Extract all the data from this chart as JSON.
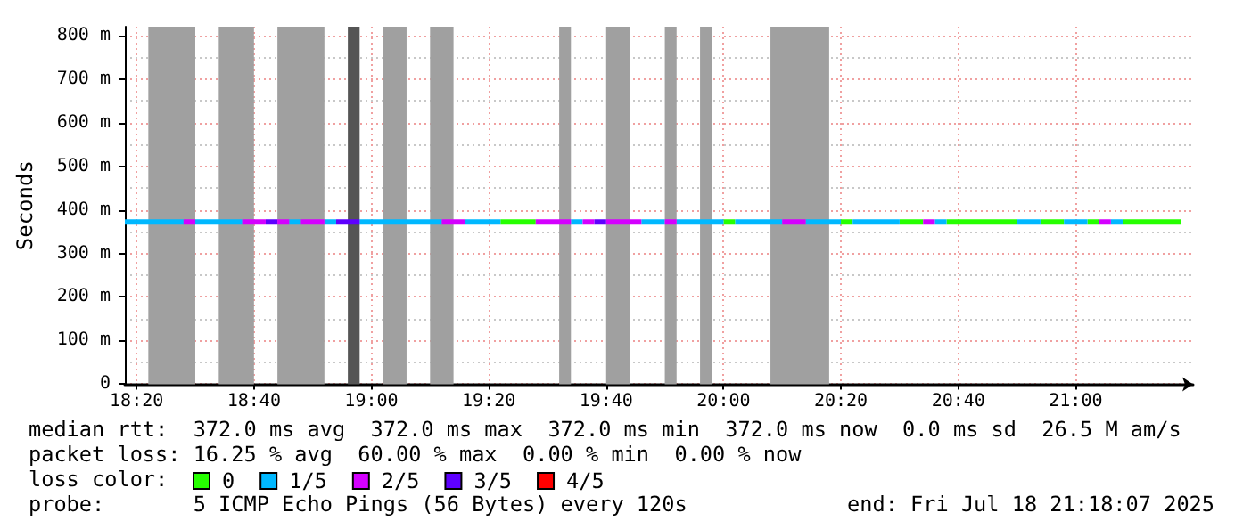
{
  "chart_data": {
    "type": "line",
    "ylabel": "Seconds",
    "legend_title": "loss color:",
    "legend": "bottom left",
    "grid": true,
    "xlim": [
      18.3,
      21.3333
    ],
    "xticks": [
      {
        "value": 18.3333,
        "label": "18:20"
      },
      {
        "value": 18.6667,
        "label": "18:40"
      },
      {
        "value": 19,
        "label": "19:00"
      },
      {
        "value": 19.3333,
        "label": "19:20"
      },
      {
        "value": 19.6667,
        "label": "19:40"
      },
      {
        "value": 20,
        "label": "20:00"
      },
      {
        "value": 20.3333,
        "label": "20:20"
      },
      {
        "value": 20.6667,
        "label": "20:40"
      },
      {
        "value": 21,
        "label": "21:00"
      }
    ],
    "ylim": [
      0,
      820
    ],
    "yticks": [
      0,
      {
        "value": 100,
        "label": "100 m"
      },
      {
        "value": 200,
        "label": "200 m"
      },
      {
        "value": 300,
        "label": "300 m"
      },
      {
        "value": 400,
        "label": "400 m"
      },
      {
        "value": 500,
        "label": "500 m"
      },
      {
        "value": 600,
        "label": "600 m"
      },
      {
        "value": 700,
        "label": "700 m"
      },
      {
        "value": 800,
        "label": "800 m"
      }
    ],
    "bands": [
      {
        "axis": "x",
        "from": 18.3667,
        "to": 18.5,
        "color": "#a0a0a0"
      },
      {
        "axis": "x",
        "from": 18.5667,
        "to": 18.6667,
        "color": "#a0a0a0"
      },
      {
        "axis": "x",
        "from": 18.7333,
        "to": 18.8667,
        "color": "#a0a0a0"
      },
      {
        "axis": "x",
        "from": 18.9333,
        "to": 18.9667,
        "color": "#555555"
      },
      {
        "axis": "x",
        "from": 19.0333,
        "to": 19.1,
        "color": "#a0a0a0"
      },
      {
        "axis": "x",
        "from": 19.1667,
        "to": 19.2333,
        "color": "#a0a0a0"
      },
      {
        "axis": "x",
        "from": 19.5333,
        "to": 19.5667,
        "color": "#a0a0a0"
      },
      {
        "axis": "x",
        "from": 19.6667,
        "to": 19.7333,
        "color": "#a0a0a0"
      },
      {
        "axis": "x",
        "from": 19.8333,
        "to": 19.8667,
        "color": "#a0a0a0"
      },
      {
        "axis": "x",
        "from": 19.9333,
        "to": 19.9667,
        "color": "#a0a0a0"
      },
      {
        "axis": "x",
        "from": 20.1333,
        "to": 20.3,
        "color": "#a0a0a0"
      }
    ],
    "series": [
      {
        "name": "0",
        "color": "#26ff00",
        "x": [
          19.3667,
          19.4667
        ],
        "values": [
          372,
          372
        ]
      },
      {
        "name": "1/5",
        "color": "#00b8ff",
        "x": [
          18.3,
          18.4667
        ],
        "values": [
          372,
          372
        ]
      },
      {
        "name": "2/5",
        "color": "#d400ff",
        "x": [
          18.4667,
          18.5
        ],
        "values": [
          372,
          372
        ]
      },
      {
        "name": "3/5",
        "color": "#5e00ff",
        "x": [
          18.7,
          18.7333
        ],
        "values": [
          372,
          372
        ]
      },
      {
        "name": "4/5",
        "color": "#ff0000"
      },
      {
        "color": "#26ff00",
        "x": [
          20,
          20.0333
        ],
        "values": [
          372,
          372
        ]
      },
      {
        "color": "#26ff00",
        "x": [
          20.3333,
          20.3667
        ],
        "values": [
          372,
          372
        ]
      },
      {
        "color": "#26ff00",
        "x": [
          20.5,
          20.5667
        ],
        "values": [
          372,
          372
        ]
      },
      {
        "color": "#26ff00",
        "x": [
          20.6333,
          20.8333
        ],
        "values": [
          372,
          372
        ]
      },
      {
        "color": "#26ff00",
        "x": [
          20.9,
          20.9667
        ],
        "values": [
          372,
          372
        ]
      },
      {
        "color": "#26ff00",
        "x": [
          21.0333,
          21.0667
        ],
        "values": [
          372,
          372
        ]
      },
      {
        "color": "#26ff00",
        "x": [
          21.1333,
          21.3
        ],
        "values": [
          372,
          372
        ]
      },
      {
        "color": "#00b8ff",
        "x": [
          18.5,
          18.6333
        ],
        "values": [
          372,
          372
        ]
      },
      {
        "color": "#00b8ff",
        "x": [
          18.7667,
          18.8
        ],
        "values": [
          372,
          372
        ]
      },
      {
        "color": "#00b8ff",
        "x": [
          18.8667,
          18.9
        ],
        "values": [
          372,
          372
        ]
      },
      {
        "color": "#00b8ff",
        "x": [
          18.9667,
          19.2
        ],
        "values": [
          372,
          372
        ]
      },
      {
        "color": "#00b8ff",
        "x": [
          19.2667,
          19.3667
        ],
        "values": [
          372,
          372
        ]
      },
      {
        "color": "#00b8ff",
        "x": [
          19.5667,
          19.6
        ],
        "values": [
          372,
          372
        ]
      },
      {
        "color": "#00b8ff",
        "x": [
          19.7667,
          19.8333
        ],
        "values": [
          372,
          372
        ]
      },
      {
        "color": "#00b8ff",
        "x": [
          19.8667,
          20
        ],
        "values": [
          372,
          372
        ]
      },
      {
        "color": "#00b8ff",
        "x": [
          20.0333,
          20.1667
        ],
        "values": [
          372,
          372
        ]
      },
      {
        "color": "#00b8ff",
        "x": [
          20.2333,
          20.3333
        ],
        "values": [
          372,
          372
        ]
      },
      {
        "color": "#00b8ff",
        "x": [
          20.3667,
          20.5
        ],
        "values": [
          372,
          372
        ]
      },
      {
        "color": "#00b8ff",
        "x": [
          20.6,
          20.6333
        ],
        "values": [
          372,
          372
        ]
      },
      {
        "color": "#00b8ff",
        "x": [
          20.8333,
          20.9
        ],
        "values": [
          372,
          372
        ]
      },
      {
        "color": "#00b8ff",
        "x": [
          20.9667,
          21.0333
        ],
        "values": [
          372,
          372
        ]
      },
      {
        "color": "#00b8ff",
        "x": [
          21.1,
          21.1333
        ],
        "values": [
          372,
          372
        ]
      },
      {
        "color": "#d400ff",
        "x": [
          18.6333,
          18.7
        ],
        "values": [
          372,
          372
        ]
      },
      {
        "color": "#d400ff",
        "x": [
          18.7333,
          18.7667
        ],
        "values": [
          372,
          372
        ]
      },
      {
        "color": "#d400ff",
        "x": [
          18.8,
          18.8667
        ],
        "values": [
          372,
          372
        ]
      },
      {
        "color": "#d400ff",
        "x": [
          19.2,
          19.2667
        ],
        "values": [
          372,
          372
        ]
      },
      {
        "color": "#d400ff",
        "x": [
          19.4667,
          19.5667
        ],
        "values": [
          372,
          372
        ]
      },
      {
        "color": "#d400ff",
        "x": [
          19.6,
          19.6333
        ],
        "values": [
          372,
          372
        ]
      },
      {
        "color": "#d400ff",
        "x": [
          19.6667,
          19.7667
        ],
        "values": [
          372,
          372
        ]
      },
      {
        "color": "#d400ff",
        "x": [
          19.8333,
          19.8667
        ],
        "values": [
          372,
          372
        ]
      },
      {
        "color": "#d400ff",
        "x": [
          20.1667,
          20.2333
        ],
        "values": [
          372,
          372
        ]
      },
      {
        "color": "#d400ff",
        "x": [
          20.5667,
          20.6
        ],
        "values": [
          372,
          372
        ]
      },
      {
        "color": "#d400ff",
        "x": [
          21.0667,
          21.1
        ],
        "values": [
          372,
          372
        ]
      },
      {
        "color": "#5e00ff",
        "x": [
          18.9,
          18.9667
        ],
        "values": [
          372,
          372
        ]
      },
      {
        "color": "#5e00ff",
        "x": [
          19.6333,
          19.6667
        ],
        "values": [
          372,
          372
        ]
      }
    ],
    "annotations": [
      "median rtt:  372.0 ms avg  372.0 ms max  372.0 ms min  372.0 ms now  0.0 ms sd  26.5 M am/s",
      "packet loss: 16.25 % avg  60.00 % max  0.00 % min  0.00 % now",
      "probe:       5 ICMP Echo Pings (56 Bytes) every 120s",
      "end: Fri Jul 18 21:18:07 2025"
    ]
  }
}
